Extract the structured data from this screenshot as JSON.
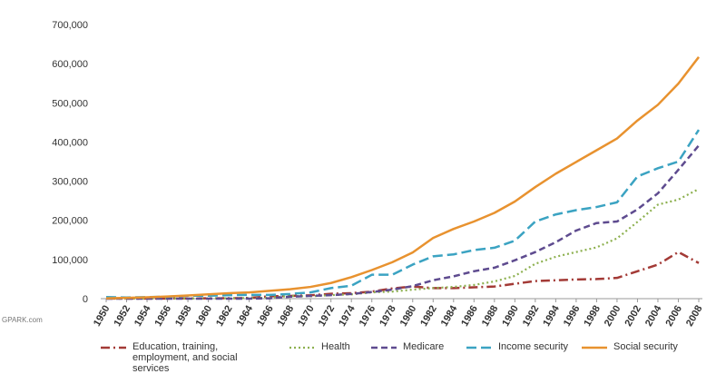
{
  "chart_data": {
    "type": "line",
    "categories": [
      "1950",
      "1952",
      "1954",
      "1956",
      "1958",
      "1960",
      "1962",
      "1964",
      "1966",
      "1968",
      "1970",
      "1972",
      "1974",
      "1976",
      "1978",
      "1980",
      "1982",
      "1984",
      "1986",
      "1988",
      "1990",
      "1992",
      "1994",
      "1996",
      "1998",
      "2000",
      "2002",
      "2004",
      "2006",
      "2008"
    ],
    "series": [
      {
        "name": "Education, training, employment, and social services",
        "color": "#a33a36",
        "dash": "dashdot",
        "values": [
          200,
          300,
          300,
          400,
          600,
          800,
          1100,
          1800,
          6000,
          7000,
          8600,
          12500,
          14000,
          18000,
          26000,
          31000,
          27000,
          27000,
          29000,
          31000,
          38000,
          45000,
          47000,
          49000,
          50000,
          53000,
          70000,
          87000,
          119000,
          91000
        ]
      },
      {
        "name": "Health",
        "color": "#8db04f",
        "dash": "dot",
        "values": [
          300,
          300,
          300,
          400,
          500,
          800,
          1000,
          1500,
          2500,
          7000,
          6000,
          9000,
          11000,
          16000,
          18000,
          23000,
          27000,
          30000,
          35000,
          44000,
          58000,
          89000,
          107000,
          119000,
          131000,
          154000,
          196000,
          240000,
          253000,
          280000
        ]
      },
      {
        "name": "Medicare",
        "color": "#5e4b8f",
        "dash": "dash",
        "values": [
          0,
          0,
          0,
          0,
          0,
          0,
          0,
          0,
          1000,
          5000,
          7000,
          9000,
          12000,
          17000,
          23000,
          32000,
          47000,
          57000,
          70000,
          79000,
          98000,
          119000,
          144000,
          174000,
          193000,
          197000,
          228000,
          269000,
          329000,
          391000
        ]
      },
      {
        "name": "Income security",
        "color": "#3ba3c2",
        "dash": "longdash",
        "values": [
          4000,
          3000,
          4000,
          5000,
          7500,
          7500,
          9000,
          9500,
          9500,
          12000,
          16000,
          27000,
          33000,
          61000,
          61000,
          87000,
          108000,
          113000,
          124000,
          130000,
          148000,
          197000,
          215000,
          226000,
          234000,
          246000,
          312000,
          333000,
          350000,
          431000
        ]
      },
      {
        "name": "Social security",
        "color": "#e8922f",
        "dash": "solid",
        "values": [
          1000,
          2000,
          3500,
          5500,
          8000,
          11000,
          14000,
          16000,
          20000,
          24000,
          30000,
          40000,
          55000,
          73000,
          93000,
          118000,
          155000,
          178000,
          197000,
          219000,
          248000,
          285000,
          319000,
          349000,
          379000,
          409000,
          455000,
          495000,
          549000,
          617000
        ]
      }
    ],
    "ylim": [
      0,
      700000
    ],
    "yticks": [
      0,
      {
        "value": 100000,
        "label": "100,000"
      },
      {
        "value": 200000,
        "label": "200,000"
      },
      {
        "value": 300000,
        "label": "300,000"
      },
      {
        "value": 400000,
        "label": "400,000"
      },
      {
        "value": 500000,
        "label": "500,000"
      },
      {
        "value": 600000,
        "label": "600,000"
      },
      {
        "value": 700000,
        "label": "700,000"
      }
    ],
    "grid": false
  },
  "watermark": "GPARK.com"
}
